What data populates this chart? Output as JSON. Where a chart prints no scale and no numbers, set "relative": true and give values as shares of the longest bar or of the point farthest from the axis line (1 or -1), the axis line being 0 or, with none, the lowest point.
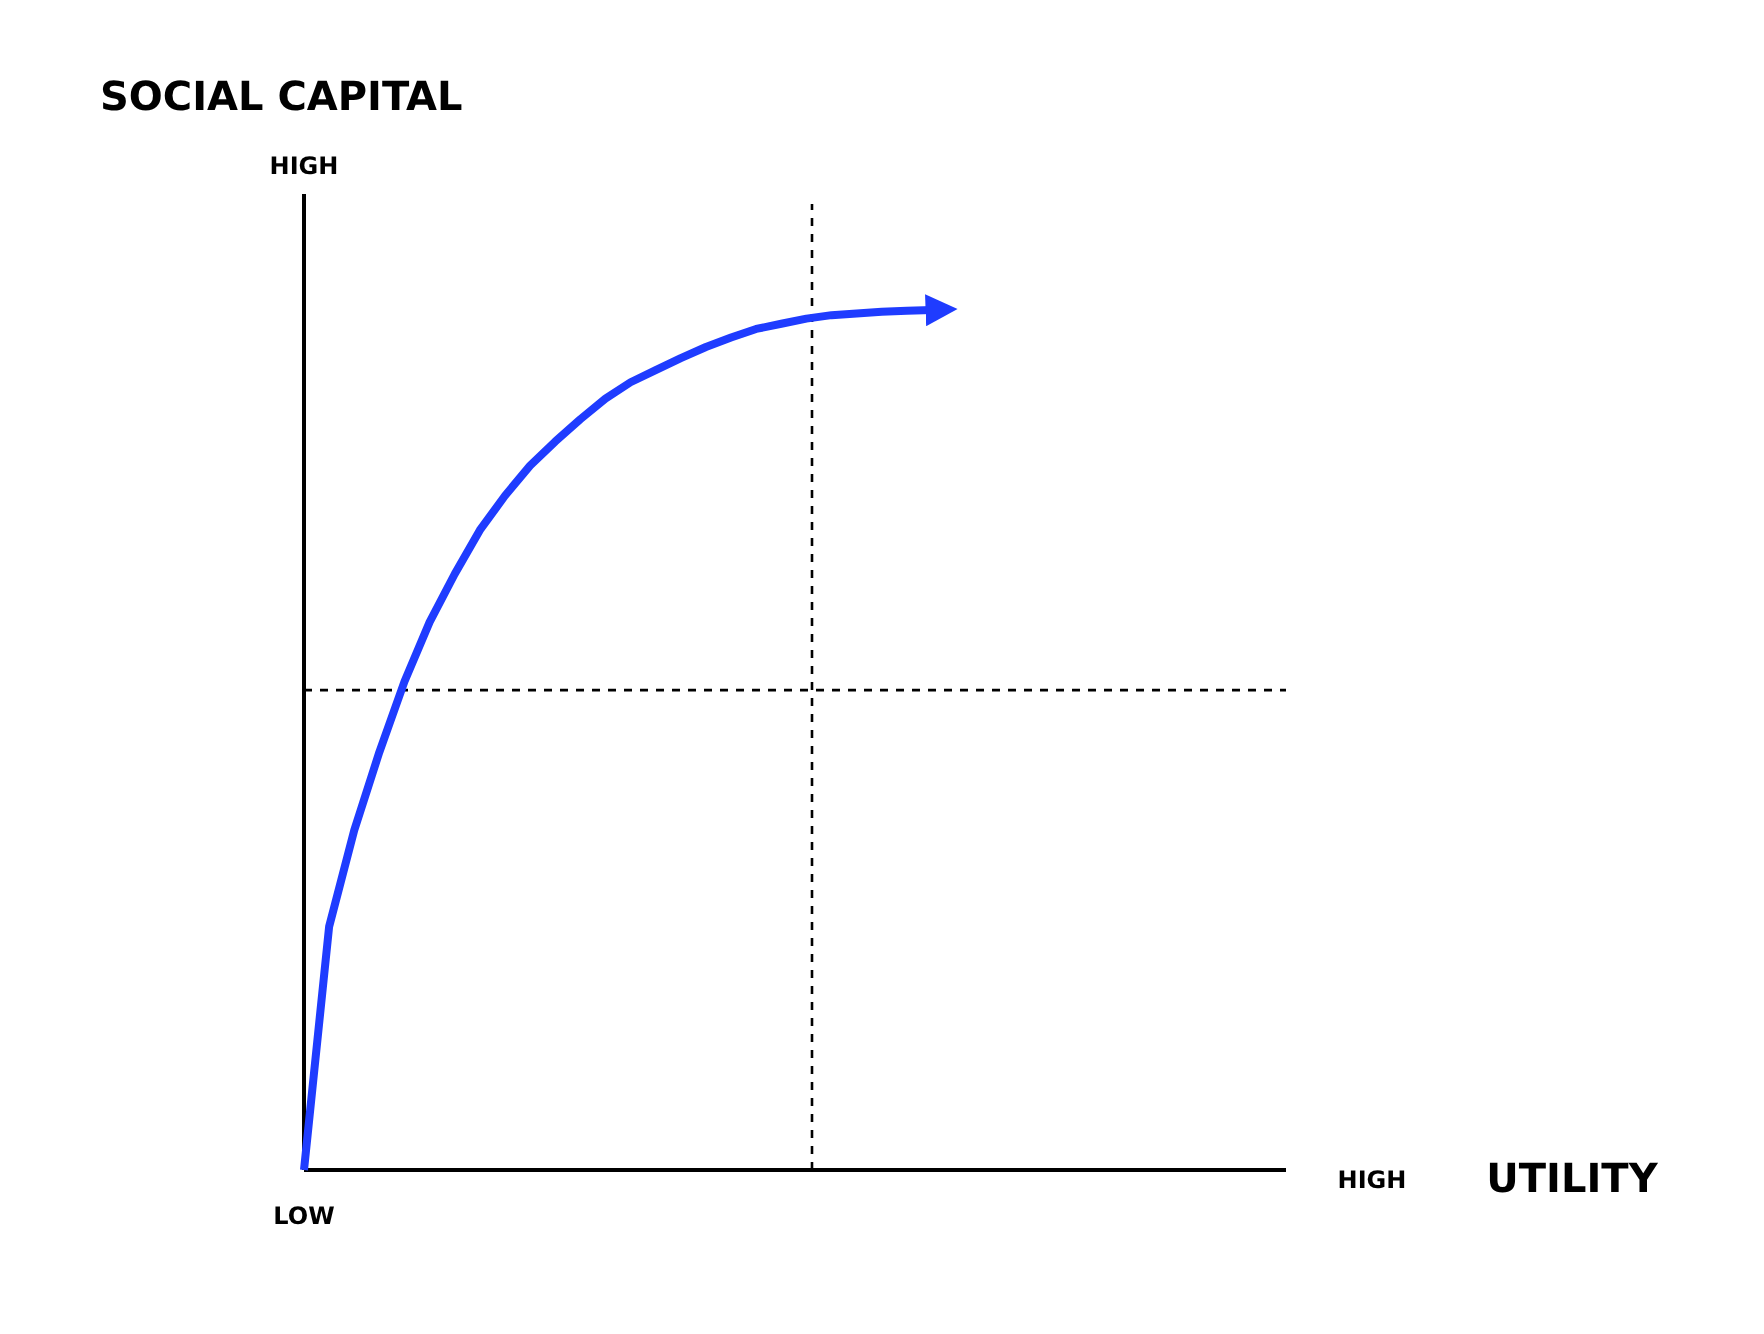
{
  "chart_data": {
    "type": "line",
    "relative": true,
    "ylabel": "SOCIAL CAPITAL",
    "tick_labels": false,
    "annotations": [
      "HIGH",
      "LOW",
      "HIGH",
      "UTILITY"
    ],
    "categories": [
      null,
      null,
      null,
      null,
      null,
      null,
      null,
      null,
      null,
      null,
      null,
      null,
      null,
      null,
      null,
      null,
      null,
      null,
      null,
      null,
      null,
      null,
      null,
      null,
      null,
      null
    ],
    "series": [
      {
        "color": "#1f3cff",
        "values": [
          0,
          0.283,
          0.395,
          0.486,
          0.568,
          0.637,
          0.693,
          0.744,
          0.784,
          0.819,
          0.847,
          0.873,
          0.897,
          0.916,
          0.93,
          0.944,
          0.957,
          0.968,
          0.978,
          0.984,
          0.99,
          0.994,
          0.996,
          0.998,
          0.999,
          1
        ]
      }
    ],
    "ref_lines": [
      {
        "axis": "y",
        "value": 0.558,
        "color": "#000000",
        "line_style": "dashed"
      }
    ],
    "line_style": "solid",
    "marker": "none"
  }
}
